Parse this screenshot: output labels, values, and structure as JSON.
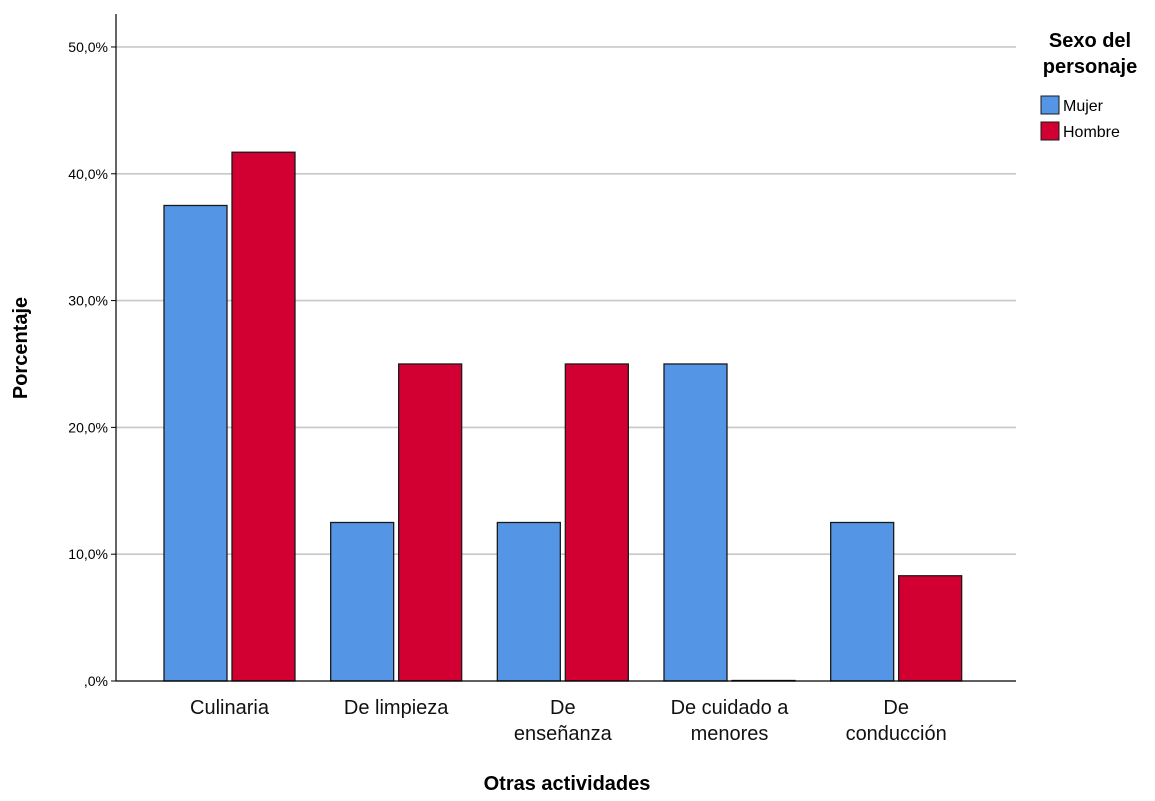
{
  "chart_data": {
    "type": "bar",
    "categories": [
      [
        "Culinaria"
      ],
      [
        "De limpieza"
      ],
      [
        "De",
        "enseñanza"
      ],
      [
        "De cuidado a",
        "menores"
      ],
      [
        "De",
        "conducción"
      ]
    ],
    "series": [
      {
        "name": "Mujer",
        "color": "#5595e5",
        "values": [
          37.5,
          12.5,
          12.5,
          25.0,
          12.5
        ]
      },
      {
        "name": "Hombre",
        "color": "#d20032",
        "values": [
          41.7,
          25.0,
          25.0,
          0.0,
          8.3
        ]
      }
    ],
    "title": "",
    "xlabel": "Otras actividades",
    "ylabel": "Porcentaje",
    "ylim": [
      0,
      52.6
    ],
    "yticks": [
      0,
      10,
      20,
      30,
      40,
      50
    ],
    "ytick_labels": [
      ",0%",
      "10,0%",
      "20,0%",
      "30,0%",
      "40,0%",
      "50,0%"
    ],
    "grid": true,
    "legend": {
      "title_lines": [
        "Sexo del",
        "personaje"
      ],
      "placement": "right"
    }
  }
}
